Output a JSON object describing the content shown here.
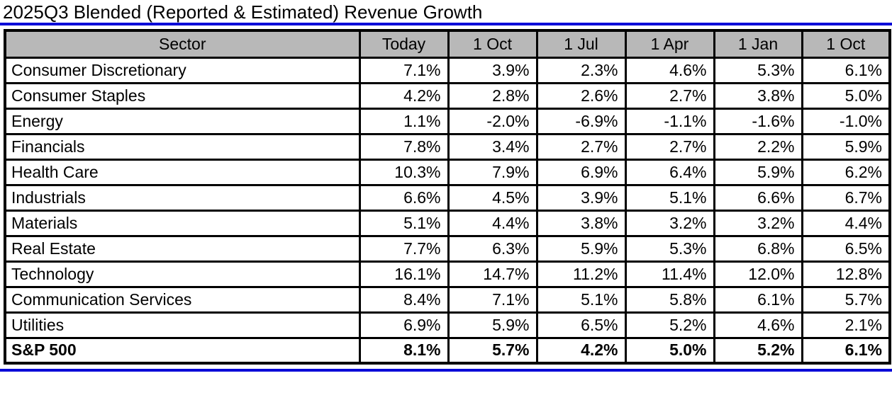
{
  "title": "2025Q3 Blended (Reported & Estimated) Revenue Growth",
  "colors": {
    "accent_blue": "#0808D8",
    "header_gray": "#B8B8B8",
    "border_black": "#000000"
  },
  "chart_data": {
    "type": "table",
    "title": "2025Q3 Blended (Reported & Estimated) Revenue Growth",
    "columns": [
      "Sector",
      "Today",
      "1 Oct",
      "1 Jul",
      "1 Apr",
      "1 Jan",
      "1 Oct"
    ],
    "rows": [
      {
        "sector": "Consumer Discretionary",
        "values": [
          "7.1%",
          "3.9%",
          "2.3%",
          "4.6%",
          "5.3%",
          "6.1%"
        ],
        "bold": false
      },
      {
        "sector": "Consumer Staples",
        "values": [
          "4.2%",
          "2.8%",
          "2.6%",
          "2.7%",
          "3.8%",
          "5.0%"
        ],
        "bold": false
      },
      {
        "sector": "Energy",
        "values": [
          "1.1%",
          "-2.0%",
          "-6.9%",
          "-1.1%",
          "-1.6%",
          "-1.0%"
        ],
        "bold": false
      },
      {
        "sector": "Financials",
        "values": [
          "7.8%",
          "3.4%",
          "2.7%",
          "2.7%",
          "2.2%",
          "5.9%"
        ],
        "bold": false
      },
      {
        "sector": "Health Care",
        "values": [
          "10.3%",
          "7.9%",
          "6.9%",
          "6.4%",
          "5.9%",
          "6.2%"
        ],
        "bold": false
      },
      {
        "sector": "Industrials",
        "values": [
          "6.6%",
          "4.5%",
          "3.9%",
          "5.1%",
          "6.6%",
          "6.7%"
        ],
        "bold": false
      },
      {
        "sector": "Materials",
        "values": [
          "5.1%",
          "4.4%",
          "3.8%",
          "3.2%",
          "3.2%",
          "4.4%"
        ],
        "bold": false
      },
      {
        "sector": "Real Estate",
        "values": [
          "7.7%",
          "6.3%",
          "5.9%",
          "5.3%",
          "6.8%",
          "6.5%"
        ],
        "bold": false
      },
      {
        "sector": "Technology",
        "values": [
          "16.1%",
          "14.7%",
          "11.2%",
          "11.4%",
          "12.0%",
          "12.8%"
        ],
        "bold": false
      },
      {
        "sector": "Communication Services",
        "values": [
          "8.4%",
          "7.1%",
          "5.1%",
          "5.8%",
          "6.1%",
          "5.7%"
        ],
        "bold": false
      },
      {
        "sector": "Utilities",
        "values": [
          "6.9%",
          "5.9%",
          "6.5%",
          "5.2%",
          "4.6%",
          "2.1%"
        ],
        "bold": false
      },
      {
        "sector": "S&P 500",
        "values": [
          "8.1%",
          "5.7%",
          "4.2%",
          "5.0%",
          "5.2%",
          "6.1%"
        ],
        "bold": true
      }
    ]
  }
}
